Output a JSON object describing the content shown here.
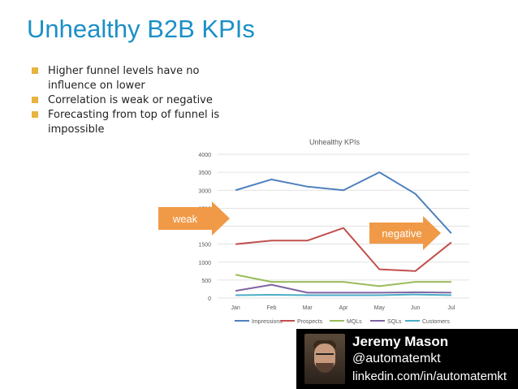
{
  "slide": {
    "title": "Unhealthy B2B KPIs",
    "bullets": [
      "Higher funnel levels have no influence on lower",
      "Correlation is weak or negative",
      "Forecasting from top of funnel is impossible"
    ],
    "bullet_color": "#e8b33e",
    "title_color": "#1b8fc7"
  },
  "callouts": {
    "weak": "weak",
    "negative": "negative",
    "arrow_color": "#f09a48"
  },
  "profile": {
    "name": "Jeremy Mason",
    "handle": "@automatemkt",
    "link": "linkedin.com/in/automatemkt"
  },
  "chart_data": {
    "type": "line",
    "title": "Unhealthy KPIs",
    "categories": [
      "Jan",
      "Feb",
      "Mar",
      "Apr",
      "May",
      "Jun",
      "Jul"
    ],
    "ylim": [
      0,
      4000
    ],
    "yticks": [
      "0",
      "500",
      "1000",
      "1500",
      "2000",
      "2500",
      "3000",
      "3500",
      "4000"
    ],
    "grid": true,
    "legend_position": "bottom",
    "series": [
      {
        "name": "Impressions",
        "color": "#4f81bd",
        "values": [
          3000,
          3300,
          3100,
          3000,
          3500,
          2900,
          1800
        ]
      },
      {
        "name": "Prospects",
        "color": "#c0504d",
        "values": [
          1500,
          1600,
          1600,
          1950,
          800,
          750,
          1550
        ]
      },
      {
        "name": "MQLs",
        "color": "#9bbb59",
        "values": [
          650,
          450,
          450,
          450,
          330,
          450,
          450
        ]
      },
      {
        "name": "SQLs",
        "color": "#8064a2",
        "values": [
          200,
          370,
          150,
          150,
          150,
          160,
          150
        ]
      },
      {
        "name": "Customers",
        "color": "#4bacc6",
        "values": [
          80,
          90,
          80,
          80,
          80,
          100,
          80
        ]
      }
    ]
  }
}
